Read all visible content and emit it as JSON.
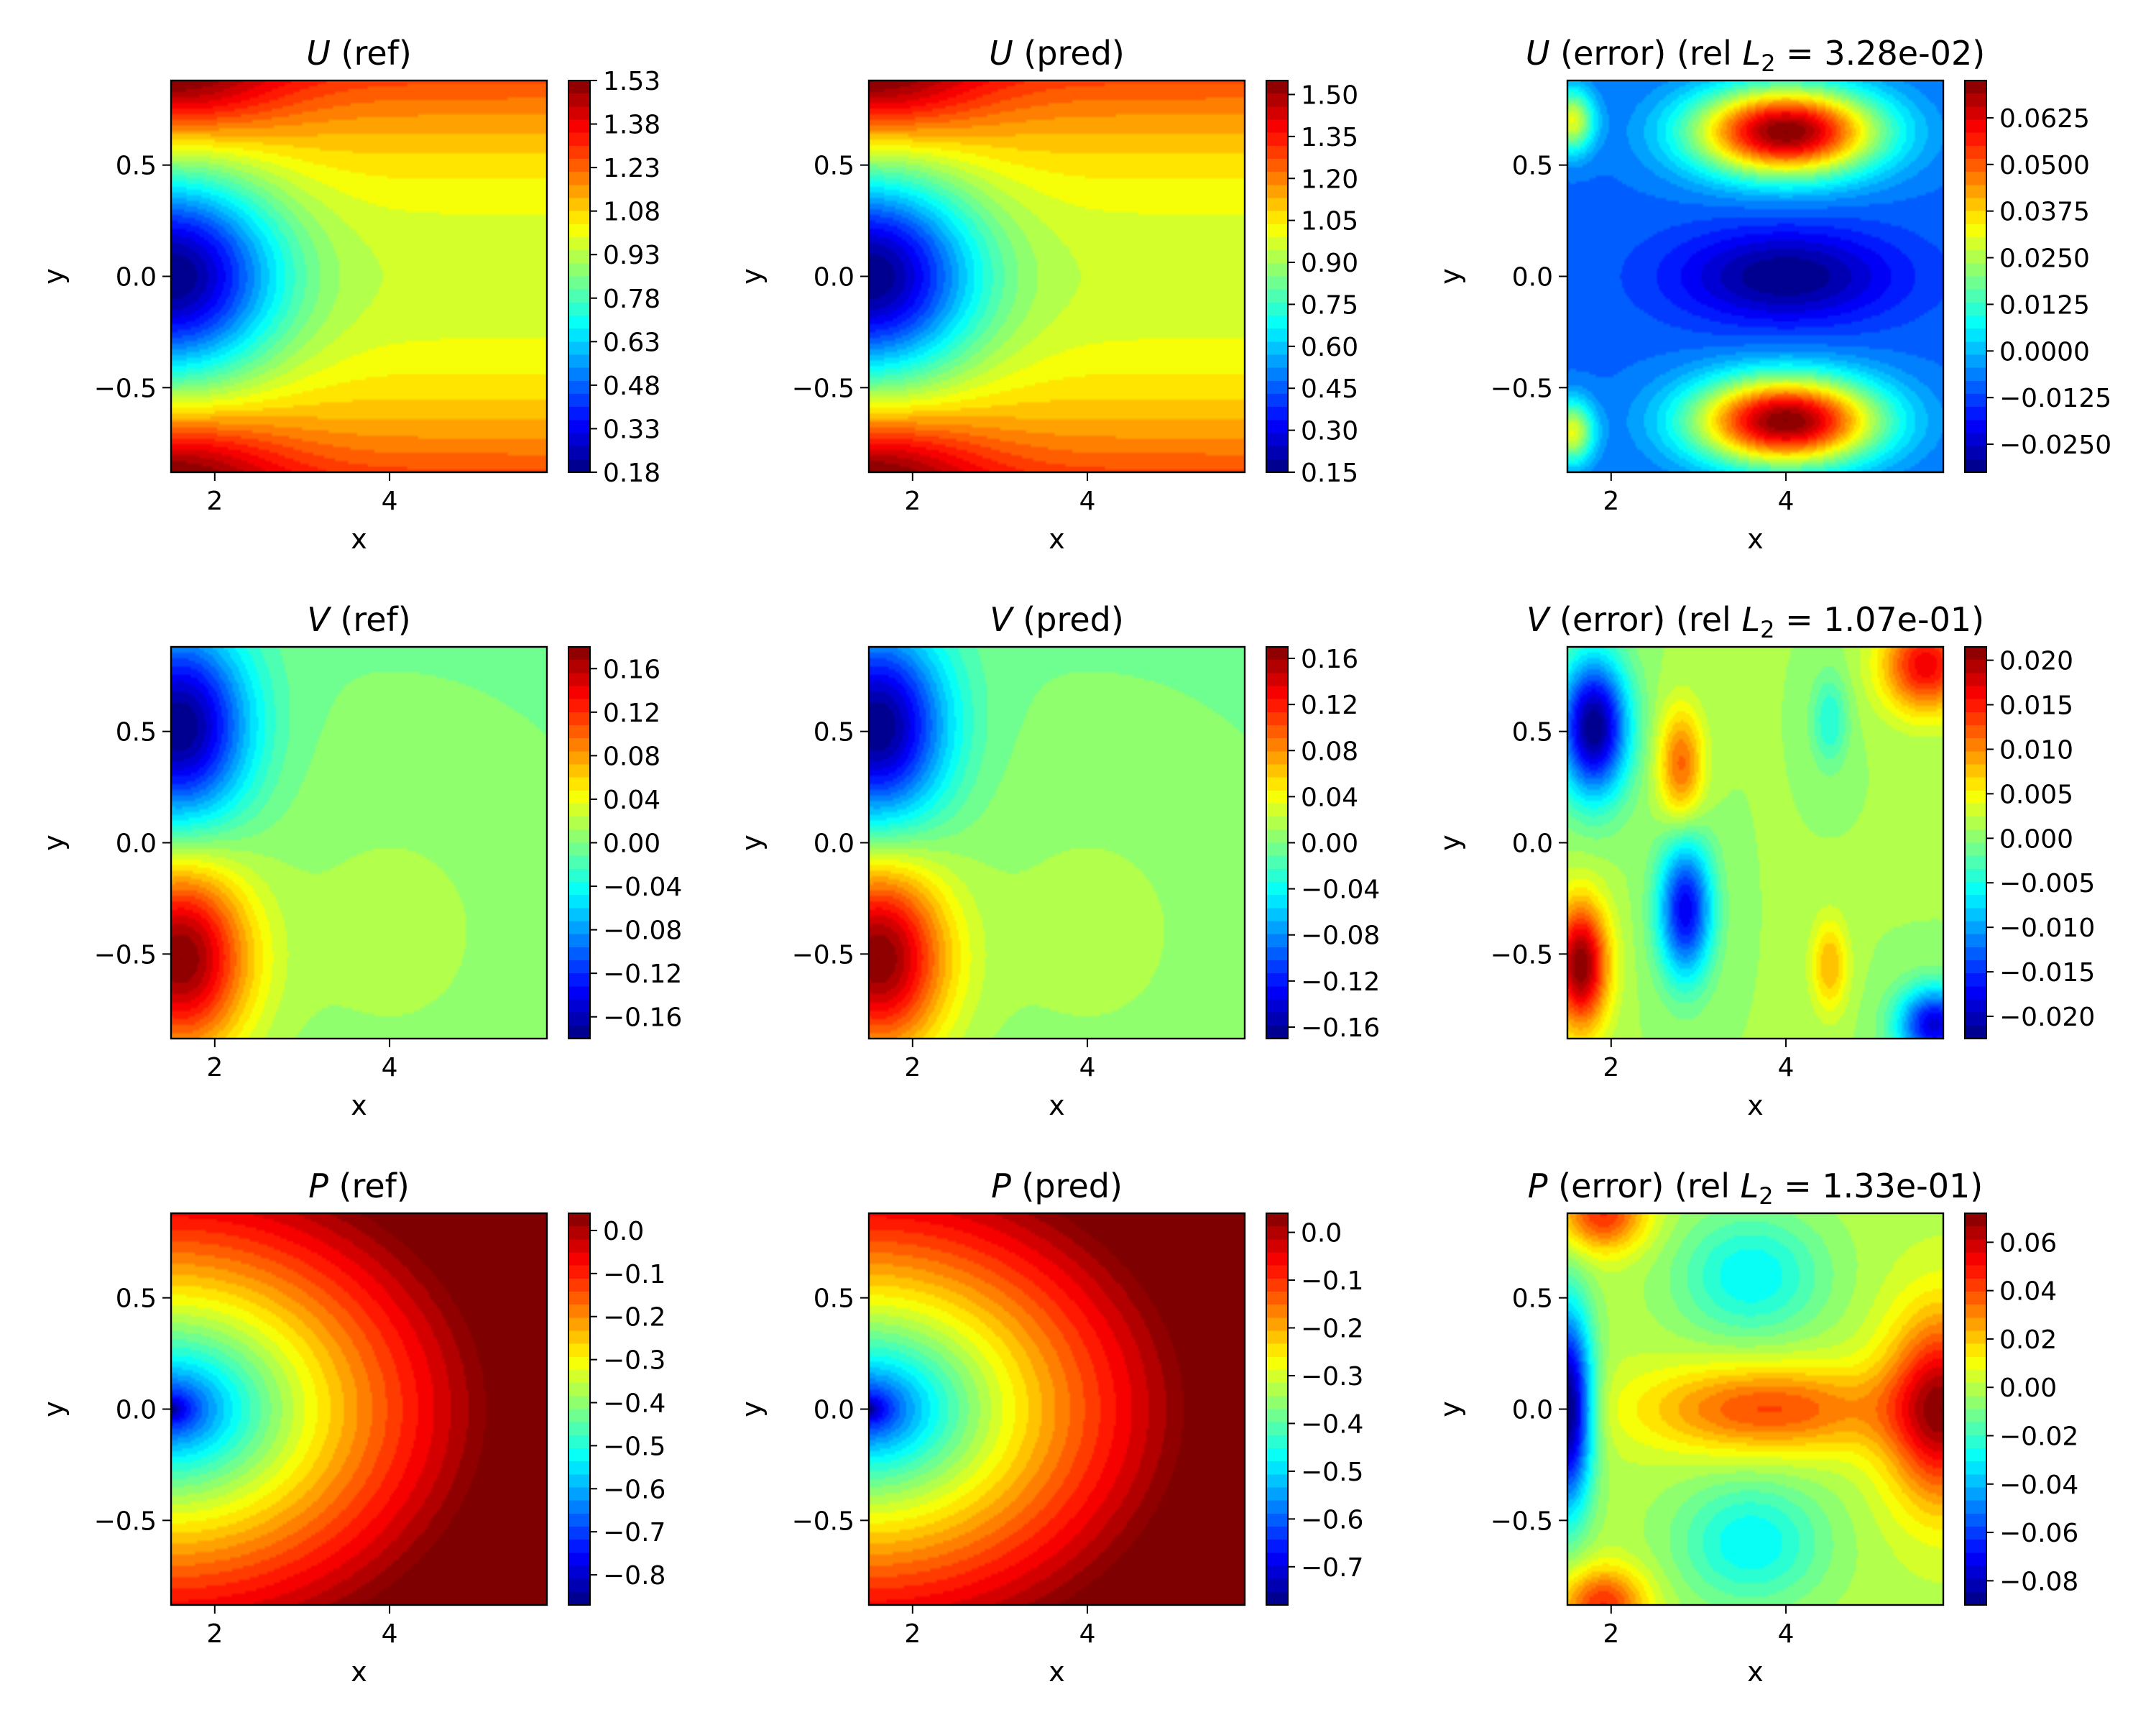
{
  "colormap": [
    "#00007f",
    "#0000ff",
    "#007fff",
    "#00ffff",
    "#7fff7f",
    "#ffff00",
    "#ff7f00",
    "#ff0000",
    "#7f0000"
  ],
  "chart_data": [
    {
      "type": "heatmap",
      "field": "U",
      "title_italic": "U",
      "title_rest": " (ref)",
      "xlabel": "x",
      "ylabel": "y",
      "xlim": [
        1.5,
        5.8
      ],
      "ylim": [
        -0.88,
        0.88
      ],
      "xticks": [
        "2",
        "4"
      ],
      "yticks": [
        "−0.5",
        "0.0",
        "0.5"
      ],
      "colorbar": {
        "min": 0.18,
        "max": 1.53,
        "ticks": [
          "0.18",
          "0.33",
          "0.48",
          "0.63",
          "0.78",
          "0.93",
          "1.08",
          "1.23",
          "1.38",
          "1.53"
        ]
      }
    },
    {
      "type": "heatmap",
      "field": "U",
      "title_italic": "U",
      "title_rest": " (pred)",
      "xlabel": "x",
      "ylabel": "y",
      "xlim": [
        1.5,
        5.8
      ],
      "ylim": [
        -0.88,
        0.88
      ],
      "xticks": [
        "2",
        "4"
      ],
      "yticks": [
        "−0.5",
        "0.0",
        "0.5"
      ],
      "colorbar": {
        "min": 0.15,
        "max": 1.55,
        "ticks": [
          "0.15",
          "0.30",
          "0.45",
          "0.60",
          "0.75",
          "0.90",
          "1.05",
          "1.20",
          "1.35",
          "1.50"
        ]
      }
    },
    {
      "type": "heatmap",
      "field": "U_err",
      "title_italic": "U",
      "title_rest": " (error) (rel ",
      "title_l2": "L",
      "title_sub": "2",
      "title_end": " = 3.28e-02)",
      "xlabel": "x",
      "ylabel": "y",
      "xlim": [
        1.5,
        5.8
      ],
      "ylim": [
        -0.88,
        0.88
      ],
      "xticks": [
        "2",
        "4"
      ],
      "yticks": [
        "−0.5",
        "0.0",
        "0.5"
      ],
      "colorbar": {
        "min": -0.0325,
        "max": 0.0725,
        "ticks": [
          "−0.0250",
          "−0.0125",
          "0.0000",
          "0.0125",
          "0.0250",
          "0.0375",
          "0.0500",
          "0.0625"
        ]
      }
    },
    {
      "type": "heatmap",
      "field": "V",
      "title_italic": "V",
      "title_rest": " (ref)",
      "xlabel": "x",
      "ylabel": "y",
      "xlim": [
        1.5,
        5.8
      ],
      "ylim": [
        -0.88,
        0.88
      ],
      "xticks": [
        "2",
        "4"
      ],
      "yticks": [
        "−0.5",
        "0.0",
        "0.5"
      ],
      "colorbar": {
        "min": -0.18,
        "max": 0.18,
        "ticks": [
          "−0.16",
          "−0.12",
          "−0.08",
          "−0.04",
          "0.00",
          "0.04",
          "0.08",
          "0.12",
          "0.16"
        ]
      }
    },
    {
      "type": "heatmap",
      "field": "V",
      "title_italic": "V",
      "title_rest": " (pred)",
      "xlabel": "x",
      "ylabel": "y",
      "xlim": [
        1.5,
        5.8
      ],
      "ylim": [
        -0.88,
        0.88
      ],
      "xticks": [
        "2",
        "4"
      ],
      "yticks": [
        "−0.5",
        "0.0",
        "0.5"
      ],
      "colorbar": {
        "min": -0.17,
        "max": 0.17,
        "ticks": [
          "−0.16",
          "−0.12",
          "−0.08",
          "−0.04",
          "0.00",
          "0.04",
          "0.08",
          "0.12",
          "0.16"
        ]
      }
    },
    {
      "type": "heatmap",
      "field": "V_err",
      "title_italic": "V",
      "title_rest": " (error) (rel ",
      "title_l2": "L",
      "title_sub": "2",
      "title_end": " = 1.07e-01)",
      "xlabel": "x",
      "ylabel": "y",
      "xlim": [
        1.5,
        5.8
      ],
      "ylim": [
        -0.88,
        0.88
      ],
      "xticks": [
        "2",
        "4"
      ],
      "yticks": [
        "−0.5",
        "0.0",
        "0.5"
      ],
      "colorbar": {
        "min": -0.0225,
        "max": 0.0215,
        "ticks": [
          "−0.020",
          "−0.015",
          "−0.010",
          "−0.005",
          "0.000",
          "0.005",
          "0.010",
          "0.015",
          "0.020"
        ]
      }
    },
    {
      "type": "heatmap",
      "field": "P",
      "title_italic": "P",
      "title_rest": " (ref)",
      "xlabel": "x",
      "ylabel": "y",
      "xlim": [
        1.5,
        5.8
      ],
      "ylim": [
        -0.88,
        0.88
      ],
      "xticks": [
        "2",
        "4"
      ],
      "yticks": [
        "−0.5",
        "0.0",
        "0.5"
      ],
      "colorbar": {
        "min": -0.87,
        "max": 0.04,
        "ticks": [
          "−0.8",
          "−0.7",
          "−0.6",
          "−0.5",
          "−0.4",
          "−0.3",
          "−0.2",
          "−0.1",
          "0.0"
        ]
      }
    },
    {
      "type": "heatmap",
      "field": "P",
      "title_italic": "P",
      "title_rest": " (pred)",
      "xlabel": "x",
      "ylabel": "y",
      "xlim": [
        1.5,
        5.8
      ],
      "ylim": [
        -0.88,
        0.88
      ],
      "xticks": [
        "2",
        "4"
      ],
      "yticks": [
        "−0.5",
        "0.0",
        "0.5"
      ],
      "colorbar": {
        "min": -0.78,
        "max": 0.04,
        "ticks": [
          "−0.7",
          "−0.6",
          "−0.5",
          "−0.4",
          "−0.3",
          "−0.2",
          "−0.1",
          "0.0"
        ]
      }
    },
    {
      "type": "heatmap",
      "field": "P_err",
      "title_italic": "P",
      "title_rest": " (error) (rel ",
      "title_l2": "L",
      "title_sub": "2",
      "title_end": " = 1.33e-01)",
      "xlabel": "x",
      "ylabel": "y",
      "xlim": [
        1.5,
        5.8
      ],
      "ylim": [
        -0.88,
        0.88
      ],
      "xticks": [
        "2",
        "4"
      ],
      "yticks": [
        "−0.5",
        "0.0",
        "0.5"
      ],
      "colorbar": {
        "min": -0.09,
        "max": 0.072,
        "ticks": [
          "−0.08",
          "−0.06",
          "−0.04",
          "−0.02",
          "0.00",
          "0.02",
          "0.04",
          "0.06"
        ]
      }
    }
  ]
}
